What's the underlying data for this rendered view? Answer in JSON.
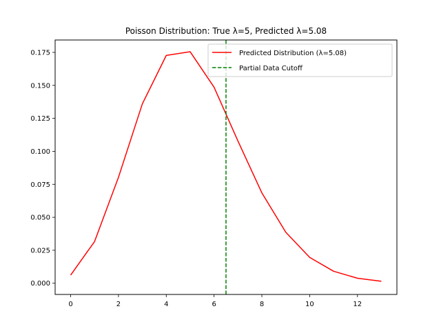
{
  "chart_data": {
    "type": "line",
    "title": "Poisson Distribution: True λ=5, Predicted λ=5.08",
    "xlabel": "",
    "ylabel": "",
    "xlim": [
      -0.65,
      13.65
    ],
    "ylim": [
      -0.0085,
      0.1844
    ],
    "x_ticks": [
      0,
      2,
      4,
      6,
      8,
      10,
      12
    ],
    "y_ticks": [
      0.0,
      0.025,
      0.05,
      0.075,
      0.1,
      0.125,
      0.15,
      0.175
    ],
    "x_tick_labels": [
      "0",
      "2",
      "4",
      "6",
      "8",
      "10",
      "12"
    ],
    "y_tick_labels": [
      "0.000",
      "0.025",
      "0.050",
      "0.075",
      "0.100",
      "0.125",
      "0.150",
      "0.175"
    ],
    "grid": false,
    "legend_position": "top-right",
    "series": [
      {
        "name": "Predicted Distribution (λ=5.08)",
        "color": "#ff0000",
        "style": "solid",
        "x": [
          0,
          1,
          2,
          3,
          4,
          5,
          6,
          7,
          8,
          9,
          10,
          11,
          12,
          13
        ],
        "y": [
          0.0062,
          0.0316,
          0.0803,
          0.136,
          0.1727,
          0.1755,
          0.1486,
          0.1078,
          0.0685,
          0.0387,
          0.0196,
          0.0091,
          0.0038,
          0.0015
        ]
      }
    ],
    "reference_lines": [
      {
        "name": "Partial Data Cutoff",
        "orientation": "vertical",
        "x": 6.5,
        "color": "#008000",
        "style": "dashed"
      }
    ]
  }
}
